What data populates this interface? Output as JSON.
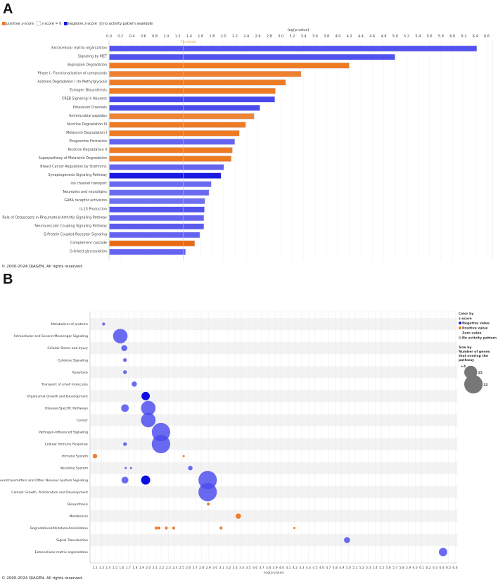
{
  "panel_a": {
    "letter": "A",
    "legend": [
      {
        "label": "positive z-score",
        "color": "#ee7722"
      },
      {
        "label": "z-score = 0",
        "color": "#ffffff"
      },
      {
        "label": "negative z-score",
        "color": "#1a1ae0"
      },
      {
        "label": "no activity pattern available",
        "color": "#cccccc"
      }
    ],
    "copyright": "© 2000-2024 QIAGEN. All rights reserved."
  },
  "panel_b": {
    "letter": "B",
    "legend": {
      "color_title": "Color by",
      "color_subtitle": "z-score",
      "items": [
        {
          "label": "Negative value",
          "color": "#1a1ae0"
        },
        {
          "label": "Positive value",
          "color": "#ee7722"
        },
        {
          "label": "Zero value",
          "color": "#ffffff"
        },
        {
          "label": "No activity pattern",
          "color": "#aab0c0"
        }
      ],
      "size_title": "Size by",
      "size_subtitle": "Number of genes that overlap the pathway",
      "sizes": [
        4,
        15,
        22
      ]
    },
    "copyright": "© 2000-2024 QIAGEN. All rights reserved."
  },
  "chart_data": [
    {
      "type": "bar",
      "orientation": "horizontal",
      "xlabel": "-log(p-value)",
      "xlim": [
        0,
        6.6
      ],
      "xticks": [
        "0.0",
        "0.2",
        "0.4",
        "0.6",
        "0.8",
        "1.0",
        "1.2",
        "1.4",
        "1.6",
        "1.8",
        "2.0",
        "2.2",
        "2.4",
        "2.6",
        "2.8",
        "3.0",
        "3.2",
        "3.4",
        "3.6",
        "3.8",
        "4.0",
        "4.2",
        "4.4",
        "4.6",
        "4.8",
        "5.0",
        "5.2",
        "5.4",
        "5.6",
        "5.8",
        "6.0",
        "6.2",
        "6.4",
        "6.6"
      ],
      "threshold": {
        "label": "Threshold",
        "value": 1.3
      },
      "grid": true,
      "categories": [
        "Extracellular matrix organization",
        "Signaling by MET",
        "Bupropion Degradation",
        "Phase I - Functionalization of compounds",
        "Acetone Degradation I (to Methylglyoxal)",
        "Estrogen Biosynthesis",
        "CREB Signaling in Neurons",
        "Potassium Channels",
        "Antimicrobial peptides",
        "Nicotine Degradation III",
        "Melatonin Degradation I",
        "Phagosome Formation",
        "Nicotine Degradation II",
        "Superpathway of Melatonin Degradation",
        "Breast Cancer Regulation by Stathmin1",
        "Synaptogenesis Signaling Pathway",
        "Ion channel transport",
        "Neurexins and neuroligins",
        "GABA receptor activation",
        "IL-15 Production",
        "Role of Osteoclasts in Rheumatoid Arthritis Signaling Pathway",
        "Neurovascular Coupling Signaling Pathway",
        "G-Protein Coupled Receptor Signaling",
        "Complement cascade",
        "O-linked glycosylation"
      ],
      "values": [
        6.42,
        4.99,
        4.19,
        3.35,
        3.08,
        2.9,
        2.89,
        2.63,
        2.53,
        2.38,
        2.27,
        2.19,
        2.15,
        2.13,
        2.0,
        1.95,
        1.78,
        1.74,
        1.67,
        1.66,
        1.65,
        1.65,
        1.58,
        1.49,
        1.33
      ],
      "colors": [
        "#5252ee",
        "#5252ee",
        "#ee7a22",
        "#ee8030",
        "#ee7a22",
        "#ee7a22",
        "#4a4aec",
        "#4a4aec",
        "#ee8535",
        "#ee7a22",
        "#ee7a22",
        "#6464f0",
        "#ee7a22",
        "#ee7a22",
        "#6464f0",
        "#1a1ae0",
        "#6a6af0",
        "#6a6af0",
        "#7070f2",
        "#5252ee",
        "#6464f0",
        "#5a5aee",
        "#6464f0",
        "#ea6a10",
        "#6464f0"
      ]
    },
    {
      "type": "scatter",
      "subtype": "bubble",
      "xlabel": "-log(p-value)",
      "xlim": [
        1.2,
        6.6
      ],
      "xticks": [
        "1.2",
        "1.3",
        "1.4",
        "1.5",
        "1.6",
        "1.7",
        "1.8",
        "1.9",
        "2.0",
        "2.1",
        "2.2",
        "2.3",
        "2.4",
        "2.5",
        "2.6",
        "2.7",
        "2.8",
        "2.9",
        "3.0",
        "3.1",
        "3.2",
        "3.3",
        "3.4",
        "3.5",
        "3.6",
        "3.7",
        "3.8",
        "3.9",
        "4.0",
        "4.1",
        "4.2",
        "4.3",
        "4.4",
        "4.5",
        "4.6",
        "4.7",
        "4.8",
        "4.9",
        "5.0",
        "5.1",
        "5.2",
        "5.3",
        "5.4",
        "5.5",
        "5.6",
        "5.7",
        "5.8",
        "5.9",
        "6.0",
        "6.1",
        "6.2",
        "6.3",
        "6.4",
        "6.5",
        "6.6"
      ],
      "grid": true,
      "categories": [
        "Metabolism of proteins",
        "Intracellular and Second Messenger Signaling",
        "Cellular Stress and Injury",
        "Cytokine Signaling",
        "Apoptosis",
        "Transport of small molecules",
        "Organismal Growth and Development",
        "Disease-Specific Pathways",
        "Cancer",
        "Pathogen-Influenced Signaling",
        "Cellular Immune Response",
        "Immune System",
        "Neuronal System",
        "Neurotransmitters and Other Nervous System Signaling",
        "Cellular Growth, Proliferation and Development",
        "Biosynthesis",
        "Metabolism",
        "Degradation/Utilization/Assimilation",
        "Signal Transduction",
        "Extracellular matrix organization"
      ],
      "points": [
        {
          "row": 0,
          "x": 1.33,
          "genes": 2,
          "z": "negative-light"
        },
        {
          "row": 1,
          "x": 1.58,
          "genes": 17,
          "z": "negative-light"
        },
        {
          "row": 2,
          "x": 1.64,
          "genes": 6,
          "z": "negative-light"
        },
        {
          "row": 3,
          "x": 1.65,
          "genes": 3,
          "z": "negative-light"
        },
        {
          "row": 4,
          "x": 1.65,
          "genes": 3,
          "z": "negative-light"
        },
        {
          "row": 5,
          "x": 1.79,
          "genes": 5,
          "z": "negative-light"
        },
        {
          "row": 6,
          "x": 1.96,
          "genes": 9,
          "z": "negative-dark"
        },
        {
          "row": 7,
          "x": 1.65,
          "genes": 8,
          "z": "negative-light"
        },
        {
          "row": 7,
          "x": 2.0,
          "genes": 17,
          "z": "negative-light"
        },
        {
          "row": 8,
          "x": 2.0,
          "genes": 17,
          "z": "negative-light"
        },
        {
          "row": 9,
          "x": 2.19,
          "genes": 22,
          "z": "negative-light"
        },
        {
          "row": 10,
          "x": 1.65,
          "genes": 3,
          "z": "negative-light"
        },
        {
          "row": 10,
          "x": 2.19,
          "genes": 22,
          "z": "negative-light"
        },
        {
          "row": 11,
          "x": 1.2,
          "genes": 4,
          "z": "positive"
        },
        {
          "row": 11,
          "x": 2.53,
          "genes": 1,
          "z": "positive"
        },
        {
          "row": 12,
          "x": 1.66,
          "genes": 1,
          "z": "negative-light"
        },
        {
          "row": 12,
          "x": 1.74,
          "genes": 1,
          "z": "negative-light"
        },
        {
          "row": 12,
          "x": 2.63,
          "genes": 4,
          "z": "negative-light"
        },
        {
          "row": 13,
          "x": 1.65,
          "genes": 7,
          "z": "negative-light"
        },
        {
          "row": 13,
          "x": 1.96,
          "genes": 10,
          "z": "negative-dark"
        },
        {
          "row": 13,
          "x": 2.89,
          "genes": 22,
          "z": "negative-light"
        },
        {
          "row": 14,
          "x": 2.89,
          "genes": 22,
          "z": "negative-light"
        },
        {
          "row": 15,
          "x": 2.9,
          "genes": 2,
          "z": "positive"
        },
        {
          "row": 16,
          "x": 3.35,
          "genes": 5,
          "z": "positive"
        },
        {
          "row": 17,
          "x": 2.12,
          "genes": 2,
          "z": "positive"
        },
        {
          "row": 17,
          "x": 2.16,
          "genes": 2,
          "z": "positive"
        },
        {
          "row": 17,
          "x": 2.27,
          "genes": 2,
          "z": "positive"
        },
        {
          "row": 17,
          "x": 2.38,
          "genes": 2,
          "z": "positive"
        },
        {
          "row": 17,
          "x": 3.09,
          "genes": 2,
          "z": "positive"
        },
        {
          "row": 17,
          "x": 4.19,
          "genes": 1,
          "z": "positive"
        },
        {
          "row": 18,
          "x": 4.98,
          "genes": 6,
          "z": "negative-light"
        },
        {
          "row": 19,
          "x": 6.42,
          "genes": 9,
          "z": "negative-light"
        }
      ],
      "z_colors": {
        "negative-light": "#4a4aee",
        "negative-dark": "#0000dd",
        "positive": "#ee7722"
      }
    }
  ]
}
